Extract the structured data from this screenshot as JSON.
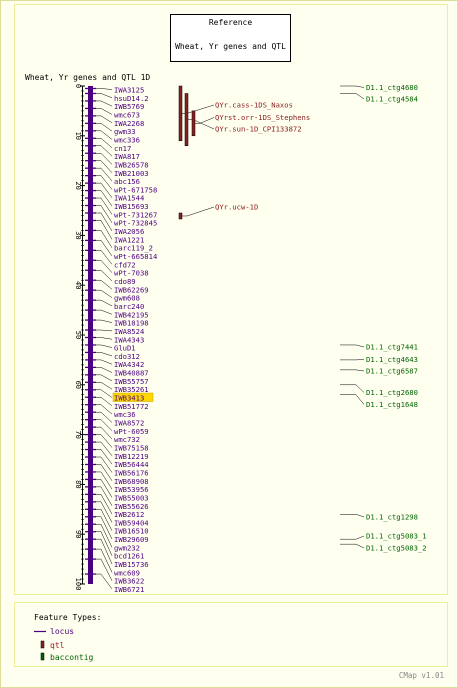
{
  "reference_box": {
    "heading": "Reference",
    "map_name": "Wheat, Yr genes and QTL"
  },
  "map": {
    "title": "Wheat, Yr genes and QTL 1D",
    "axis_range": [
      0,
      100
    ],
    "ticks": [
      0,
      10,
      20,
      30,
      40,
      50,
      60,
      70,
      80,
      90,
      100
    ],
    "color": "#4b0082"
  },
  "loci": [
    {
      "name": "IWA3125",
      "pos": 0.5
    },
    {
      "name": "hsuD14.2",
      "pos": 1.5
    },
    {
      "name": "IWB5769",
      "pos": 3
    },
    {
      "name": "wmc673",
      "pos": 4.5
    },
    {
      "name": "IWA2268",
      "pos": 6
    },
    {
      "name": "gwm33",
      "pos": 7.5
    },
    {
      "name": "wmc336",
      "pos": 9
    },
    {
      "name": "cn17",
      "pos": 10.5
    },
    {
      "name": "IWA817",
      "pos": 12
    },
    {
      "name": "IWB26578",
      "pos": 13.5
    },
    {
      "name": "IWB21003",
      "pos": 15
    },
    {
      "name": "abc156",
      "pos": 16.5
    },
    {
      "name": "wPt-671758",
      "pos": 18
    },
    {
      "name": "IWA1544",
      "pos": 19.5
    },
    {
      "name": "IWB15693",
      "pos": 21
    },
    {
      "name": "wPt-731267",
      "pos": 22.5
    },
    {
      "name": "wPt-732845",
      "pos": 24
    },
    {
      "name": "IWA2056",
      "pos": 25.5
    },
    {
      "name": "IWA1221",
      "pos": 27
    },
    {
      "name": "barc119_2",
      "pos": 29
    },
    {
      "name": "wPt-665814",
      "pos": 31
    },
    {
      "name": "cfd72",
      "pos": 33
    },
    {
      "name": "wPt-7038",
      "pos": 35
    },
    {
      "name": "cdo89",
      "pos": 37
    },
    {
      "name": "IWB62269",
      "pos": 39
    },
    {
      "name": "gwm608",
      "pos": 41
    },
    {
      "name": "barc240",
      "pos": 43
    },
    {
      "name": "IWB42195",
      "pos": 45
    },
    {
      "name": "IWB18198",
      "pos": 47
    },
    {
      "name": "IWA8524",
      "pos": 49
    },
    {
      "name": "IWA4343",
      "pos": 50.5
    },
    {
      "name": "GluD1",
      "pos": 52
    },
    {
      "name": "cdo312",
      "pos": 53.5
    },
    {
      "name": "IWA4342",
      "pos": 55
    },
    {
      "name": "IWB40887",
      "pos": 56.5
    },
    {
      "name": "IWB55757",
      "pos": 58
    },
    {
      "name": "IWB35261",
      "pos": 59.5
    },
    {
      "name": "IWB3413",
      "pos": 61,
      "highlight": true
    },
    {
      "name": "IWB51772",
      "pos": 62.5
    },
    {
      "name": "wmc36",
      "pos": 64
    },
    {
      "name": "IWA8572",
      "pos": 65.5
    },
    {
      "name": "wPt-6059",
      "pos": 67
    },
    {
      "name": "wmc732",
      "pos": 68.5
    },
    {
      "name": "IWB75158",
      "pos": 70
    },
    {
      "name": "IWB12219",
      "pos": 71.5
    },
    {
      "name": "IWB56444",
      "pos": 73
    },
    {
      "name": "IWB56176",
      "pos": 74.5
    },
    {
      "name": "IWB68908",
      "pos": 76
    },
    {
      "name": "IWB53956",
      "pos": 77.5
    },
    {
      "name": "IWB55003",
      "pos": 79
    },
    {
      "name": "IWB55626",
      "pos": 80.5
    },
    {
      "name": "IWB2612",
      "pos": 82
    },
    {
      "name": "IWB59404",
      "pos": 83.5
    },
    {
      "name": "IWB16510",
      "pos": 85
    },
    {
      "name": "IWB29609",
      "pos": 86.5
    },
    {
      "name": "gwm232",
      "pos": 88
    },
    {
      "name": "bcd1261",
      "pos": 89.5
    },
    {
      "name": "IWB15736",
      "pos": 91
    },
    {
      "name": "wmc609",
      "pos": 93
    },
    {
      "name": "IWB3622",
      "pos": 95
    },
    {
      "name": "IWB6721",
      "pos": 98
    }
  ],
  "qtls": [
    {
      "name": "QYr.cass-1DS_Naxos",
      "start": 0,
      "end": 11
    },
    {
      "name": "QYr.sun-1D_CPI133872",
      "start": 1.5,
      "end": 12
    },
    {
      "name": "QYrst.orr-1DS_Stephens",
      "start": 5,
      "end": 10
    },
    {
      "name": "QYr.ucw-1D",
      "start": 25.5,
      "end": 26.5
    }
  ],
  "contigs": [
    {
      "name": "D1.1_ctg4680",
      "pos": 0
    },
    {
      "name": "D1.1_ctg4584",
      "pos": 1.5
    },
    {
      "name": "D1.1_ctg7441",
      "pos": 52
    },
    {
      "name": "D1.1_ctg4643",
      "pos": 55
    },
    {
      "name": "D1.1_ctg6587",
      "pos": 57
    },
    {
      "name": "D1.1_ctg2680",
      "pos": 60
    },
    {
      "name": "D1.1_ctg1648",
      "pos": 62
    },
    {
      "name": "D1.1_ctg1298",
      "pos": 86
    },
    {
      "name": "D1.1_ctg5083_1",
      "pos": 91
    },
    {
      "name": "D1.1_ctg5083_2",
      "pos": 92
    }
  ],
  "legend": {
    "title": "Feature Types:",
    "items": [
      {
        "label": "locus",
        "color": "#4b0082"
      },
      {
        "label": "qtl",
        "color": "#8b2020"
      },
      {
        "label": "baccontig",
        "color": "#006400"
      }
    ]
  },
  "footer": "CMap v1.01",
  "colors": {
    "background": "#ffffef",
    "panel_border": "#eeee99",
    "locus": "#4b0082",
    "qtl": "#8b2020",
    "contig": "#006400",
    "highlight": "#ffd700"
  }
}
